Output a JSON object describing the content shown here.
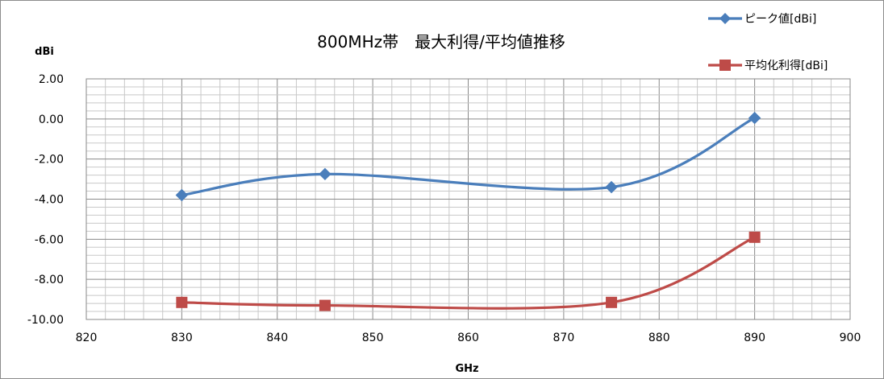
{
  "chart_data": {
    "type": "line",
    "title": "800MHz帯　最大利得/平均値推移",
    "xlabel": "GHz",
    "ylabel": "dBi",
    "xlim": [
      820,
      900
    ],
    "ylim": [
      -10,
      2
    ],
    "x_ticks": [
      "820",
      "830",
      "840",
      "850",
      "860",
      "870",
      "880",
      "890",
      "900"
    ],
    "y_ticks": [
      "2.00",
      "0.00",
      "-2.00",
      "-4.00",
      "-6.00",
      "-8.00",
      "-10.00"
    ],
    "grid": true,
    "legend_position": "top-right",
    "series": [
      {
        "name": "ピーク値[dBi]",
        "color": "#4a7ebb",
        "marker": "diamond",
        "x": [
          830,
          845,
          875,
          890
        ],
        "y": [
          -3.8,
          -2.75,
          -3.4,
          0.05
        ]
      },
      {
        "name": "平均化利得[dBi]",
        "color": "#be4b48",
        "marker": "square",
        "x": [
          830,
          845,
          875,
          890
        ],
        "y": [
          -9.15,
          -9.3,
          -9.15,
          -5.9
        ]
      }
    ]
  }
}
